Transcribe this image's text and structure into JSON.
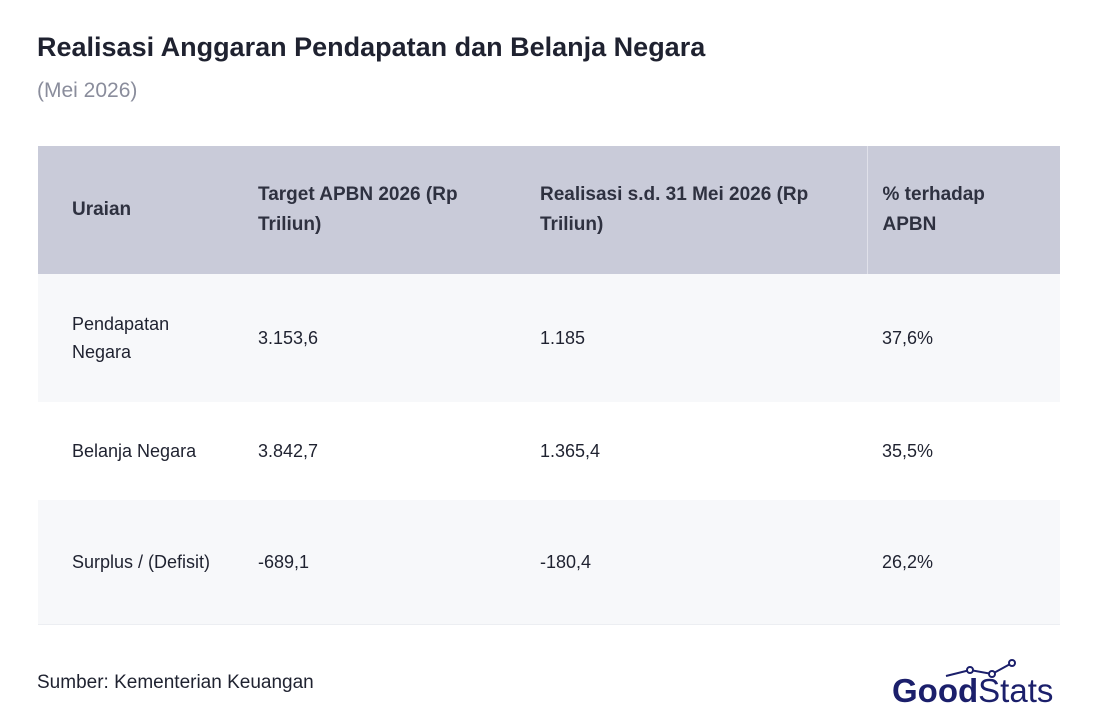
{
  "header": {
    "title": "Realisasi Anggaran Pendapatan dan Belanja Negara",
    "subtitle": "(Mei 2026)"
  },
  "table": {
    "columns": [
      "Uraian",
      "Target APBN 2026 (Rp Triliun)",
      "Realisasi s.d. 31 Mei 2026 (Rp Triliun)",
      "% terhadap APBN"
    ],
    "rows": [
      [
        "Pendapatan Negara",
        "3.153,6",
        "1.185",
        "37,6%"
      ],
      [
        "Belanja Negara",
        "3.842,7",
        "1.365,4",
        "35,5%"
      ],
      [
        "Surplus / (Defisit)",
        "-689,1",
        "-180,4",
        "26,2%"
      ]
    ]
  },
  "footer": {
    "source": "Sumber: Kementerian Keuangan",
    "logo": {
      "bold": "Good",
      "light": "Stats"
    }
  }
}
